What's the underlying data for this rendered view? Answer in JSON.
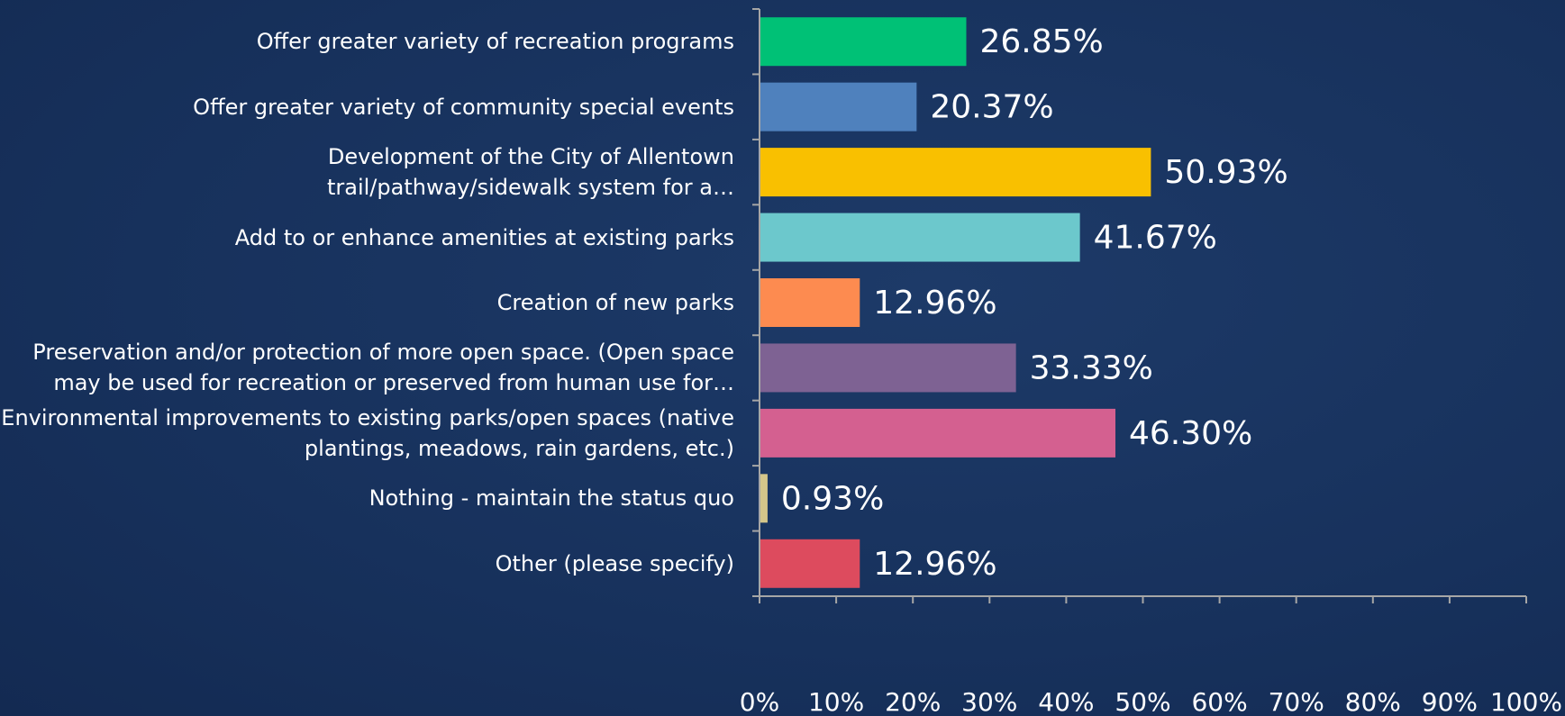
{
  "chart_data": {
    "type": "bar",
    "orientation": "horizontal",
    "categories": [
      "Offer greater variety of recreation programs",
      "Offer greater variety of community special events",
      "Development of the City of Allentown\ntrail/pathway/sidewalk system for a…",
      "Add to or enhance amenities at existing parks",
      "Creation of new parks",
      "Preservation and/or protection of more open space. (Open space\nmay be used for recreation or preserved from human use for…",
      "Environmental improvements to existing parks/open spaces (native\nplantings, meadows, rain gardens, etc.)",
      "Nothing - maintain the status quo",
      "Other (please specify)"
    ],
    "values": [
      26.85,
      20.37,
      50.93,
      41.67,
      12.96,
      33.33,
      46.3,
      0.93,
      12.96
    ],
    "value_labels": [
      "26.85%",
      "20.37%",
      "50.93%",
      "41.67%",
      "12.96%",
      "33.33%",
      "46.30%",
      "0.93%",
      "12.96%"
    ],
    "colors": [
      "#00c176",
      "#4f81bd",
      "#f9c000",
      "#6cc8cc",
      "#fd8b50",
      "#7e6293",
      "#d46090",
      "#d4c68a",
      "#dd4b5e"
    ],
    "xlim": [
      0,
      100
    ],
    "xticks": [
      {
        "value": 0,
        "label": "0%"
      },
      {
        "value": 10,
        "label": "10%"
      },
      {
        "value": 20,
        "label": "20%"
      },
      {
        "value": 30,
        "label": "30%"
      },
      {
        "value": 40,
        "label": "40%"
      },
      {
        "value": 50,
        "label": "50%"
      },
      {
        "value": 60,
        "label": "60%"
      },
      {
        "value": 70,
        "label": "70%"
      },
      {
        "value": 80,
        "label": "80%"
      },
      {
        "value": 90,
        "label": "90%"
      },
      {
        "value": 100,
        "label": "100%"
      }
    ],
    "grid": false
  }
}
